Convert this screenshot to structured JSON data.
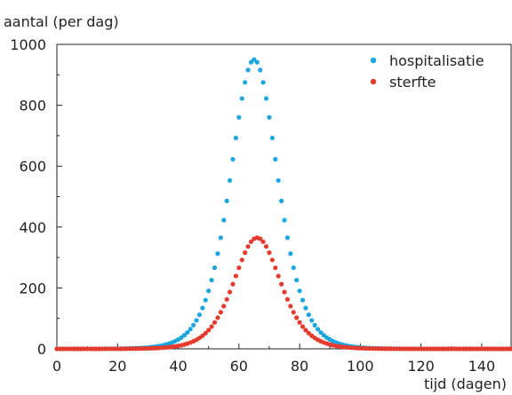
{
  "chart_data": {
    "type": "scatter",
    "title": "",
    "xlabel": "tijd (dagen)",
    "ylabel": "aantal (per dag)",
    "xlim": [
      0,
      150
    ],
    "ylim": [
      0,
      1000
    ],
    "xticks": [
      0,
      20,
      40,
      60,
      80,
      100,
      120,
      140
    ],
    "yticks": [
      0,
      200,
      400,
      600,
      800,
      1000
    ],
    "grid": false,
    "legend_position": "top-right",
    "series": [
      {
        "name": "hospitalisatie",
        "color": "#1ba6df",
        "peak_x": 65,
        "peak_y": 950,
        "x_start": 0,
        "x_end": 150,
        "x_step": 1
      },
      {
        "name": "sterfte",
        "color": "#e53b2c",
        "peak_x": 66,
        "peak_y": 365,
        "x_start": 0,
        "x_end": 150,
        "x_step": 1
      }
    ]
  }
}
